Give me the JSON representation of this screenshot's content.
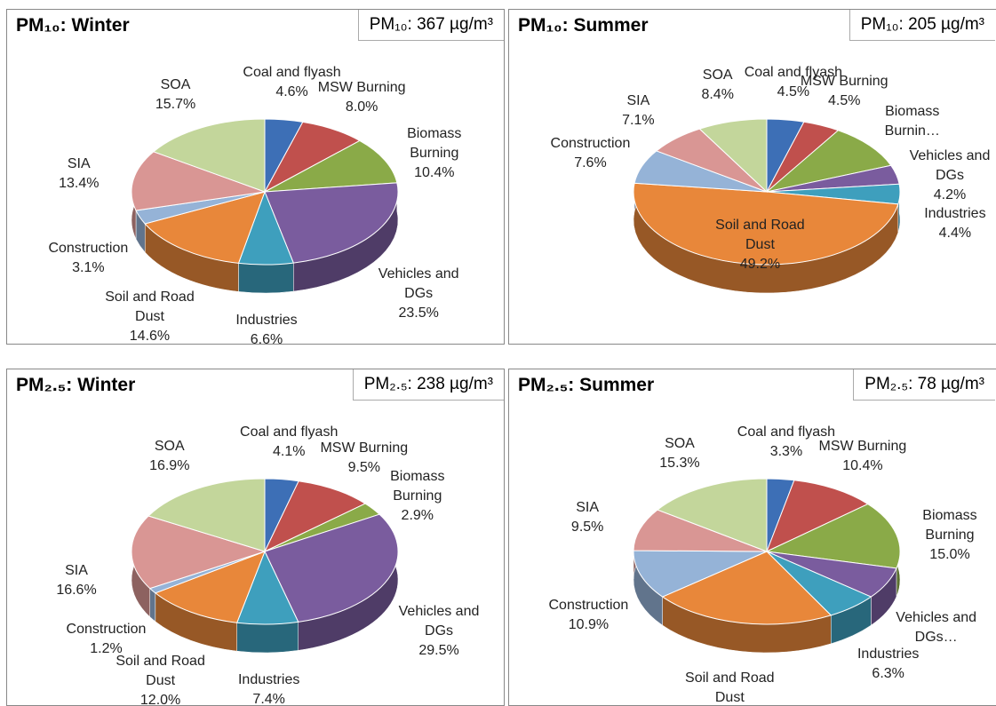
{
  "chart_data": [
    {
      "type": "pie",
      "title": "PM₁₀: Winter",
      "subtitle": "PM₁₀: 367 µg/m³",
      "categories": [
        "Coal and flyash",
        "MSW Burning",
        "Biomass Burning",
        "Vehicles and DGs",
        "Industries",
        "Soil and Road Dust",
        "Construction",
        "SIA",
        "SOA"
      ],
      "values": [
        4.6,
        8.0,
        10.4,
        23.5,
        6.6,
        14.6,
        3.1,
        13.4,
        15.7
      ],
      "value_labels": [
        "4.6%",
        "8.0%",
        "10.4%",
        "23.5%",
        "6.6%",
        "14.6%",
        "3.1%",
        "13.4%",
        "15.7%"
      ],
      "colors": [
        "#3d6fb6",
        "#c0504d",
        "#8aaa48",
        "#7a5c9e",
        "#3e9fbd",
        "#e8873a",
        "#95b3d7",
        "#d99694",
        "#c3d69b"
      ]
    },
    {
      "type": "pie",
      "title": "PM₁₀: Summer",
      "subtitle": "PM₁₀: 205 µg/m³",
      "categories": [
        "Coal and flyash",
        "MSW Burning",
        "Biomass Burnin…",
        "Vehicles and DGs",
        "Industries",
        "Soil and Road Dust",
        "Construction",
        "SIA",
        "SOA"
      ],
      "values": [
        4.5,
        4.5,
        10.1,
        4.2,
        4.4,
        49.2,
        7.6,
        7.1,
        8.4
      ],
      "value_labels": [
        "4.5%",
        "4.5%",
        null,
        "4.2%",
        "4.4%",
        "49.2%",
        "7.6%",
        "7.1%",
        "8.4%"
      ],
      "colors": [
        "#3d6fb6",
        "#c0504d",
        "#8aaa48",
        "#7a5c9e",
        "#3e9fbd",
        "#e8873a",
        "#95b3d7",
        "#d99694",
        "#c3d69b"
      ]
    },
    {
      "type": "pie",
      "title": "PM₂.₅: Winter",
      "subtitle": "PM₂.₅: 238 µg/m³",
      "categories": [
        "Coal and flyash",
        "MSW Burning",
        "Biomass Burning",
        "Vehicles and DGs",
        "Industries",
        "Soil and Road Dust",
        "Construction",
        "SIA",
        "SOA"
      ],
      "values": [
        4.1,
        9.5,
        2.9,
        29.5,
        7.4,
        12.0,
        1.2,
        16.6,
        16.9
      ],
      "value_labels": [
        "4.1%",
        "9.5%",
        "2.9%",
        "29.5%",
        "7.4%",
        "12.0%",
        "1.2%",
        "16.6%",
        "16.9%"
      ],
      "colors": [
        "#3d6fb6",
        "#c0504d",
        "#8aaa48",
        "#7a5c9e",
        "#3e9fbd",
        "#e8873a",
        "#95b3d7",
        "#d99694",
        "#c3d69b"
      ]
    },
    {
      "type": "pie",
      "title": "PM₂.₅: Summer",
      "subtitle": "PM₂.₅: 78 µg/m³",
      "categories": [
        "Coal and flyash",
        "MSW Burning",
        "Biomass Burning",
        "Vehicles and DGs…",
        "Industries",
        "Soil and Road Dust",
        "Construction",
        "SIA",
        "SOA"
      ],
      "values": [
        3.3,
        10.4,
        15.0,
        7.0,
        6.3,
        22.3,
        10.9,
        9.5,
        15.3
      ],
      "value_labels": [
        "3.3%",
        "10.4%",
        "15.0%",
        null,
        "6.3%",
        "22.3%",
        "10.9%",
        "9.5%",
        "15.3%"
      ],
      "colors": [
        "#3d6fb6",
        "#c0504d",
        "#8aaa48",
        "#7a5c9e",
        "#3e9fbd",
        "#e8873a",
        "#95b3d7",
        "#d99694",
        "#c3d69b"
      ]
    }
  ]
}
